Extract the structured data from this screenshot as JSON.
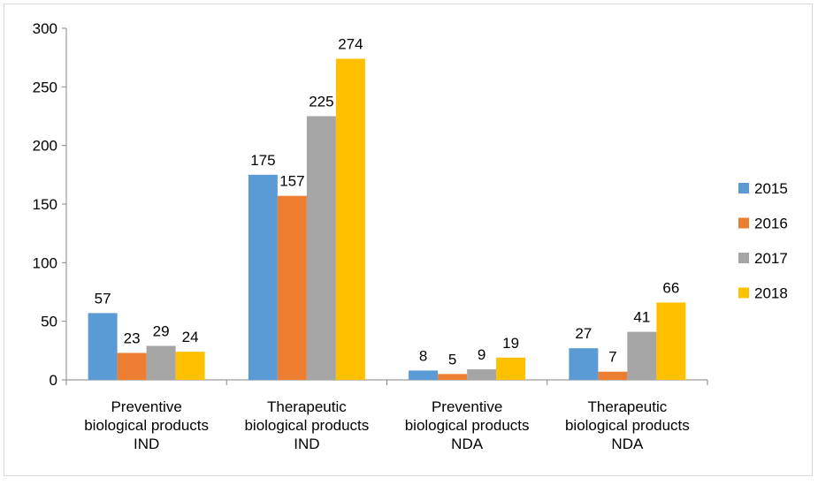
{
  "chart_data": {
    "type": "bar",
    "title": "",
    "xlabel": "",
    "ylabel": "",
    "ylim": [
      0,
      300
    ],
    "yticks": [
      0,
      50,
      100,
      150,
      200,
      250,
      300
    ],
    "grid": false,
    "legend_position": "right",
    "categories": [
      [
        "Preventive",
        "biological products",
        "IND"
      ],
      [
        "Therapeutic",
        "biological products",
        "IND"
      ],
      [
        "Preventive",
        "biological products",
        "NDA"
      ],
      [
        "Therapeutic",
        "biological products",
        "NDA"
      ]
    ],
    "series": [
      {
        "name": "2015",
        "color": "#5B9BD5",
        "values": [
          57,
          175,
          8,
          27
        ]
      },
      {
        "name": "2016",
        "color": "#ED7D31",
        "values": [
          23,
          157,
          5,
          7
        ]
      },
      {
        "name": "2017",
        "color": "#A5A5A5",
        "values": [
          29,
          225,
          9,
          41
        ]
      },
      {
        "name": "2018",
        "color": "#FFC000",
        "values": [
          24,
          274,
          19,
          66
        ]
      }
    ]
  }
}
